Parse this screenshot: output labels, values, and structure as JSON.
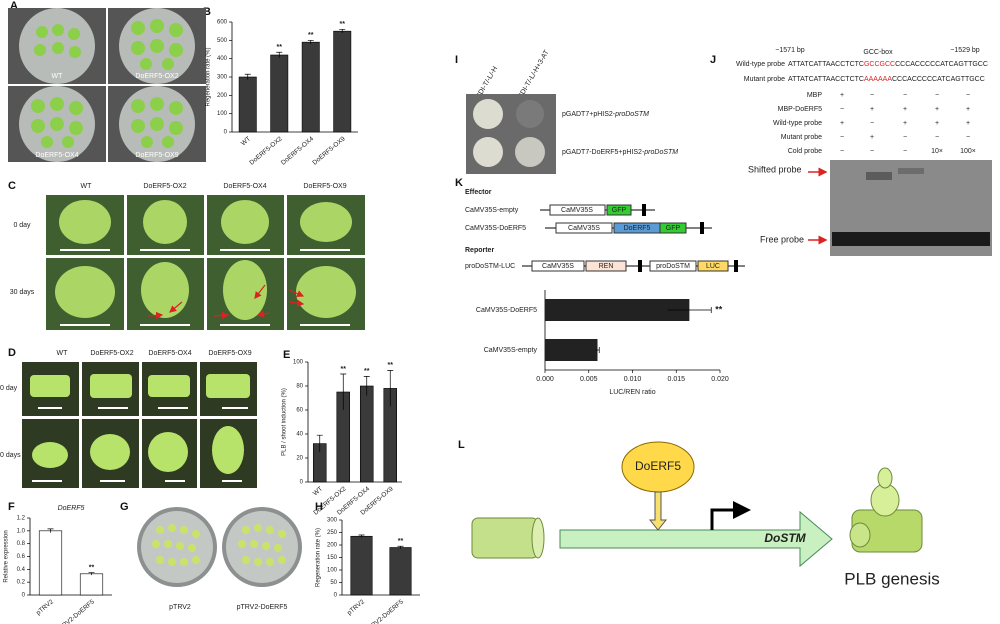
{
  "panel_letters": [
    "A",
    "B",
    "C",
    "D",
    "E",
    "F",
    "G",
    "H",
    "I",
    "J",
    "K",
    "L"
  ],
  "panel_a": {
    "labels": [
      "WT",
      "DoERF5-OX2",
      "DoERF5-OX4",
      "DoERF5-OX9"
    ]
  },
  "panel_c": {
    "columns": [
      "WT",
      "DoERF5-OX2",
      "DoERF5-OX4",
      "DoERF5-OX9"
    ],
    "rows": [
      "0 day",
      "30 days"
    ]
  },
  "panel_d": {
    "columns": [
      "WT",
      "DoERF5-OX2",
      "DoERF5-OX4",
      "DoERF5-OX9"
    ],
    "rows": [
      "0 day",
      "0 days"
    ]
  },
  "panel_g": {
    "labels": [
      "pTRV2",
      "pTRV2-DoERF5"
    ]
  },
  "panel_i": {
    "columns": [
      "SDI-T/-L/-H",
      "SDI-T/-L/-H+3-AT"
    ],
    "rows": [
      {
        "plain": "pGADT7+pHIS2-",
        "italic": "proDoSTM"
      },
      {
        "plain": "pGADT7-DoERF5+pHIS2-",
        "italic": "proDoSTM"
      }
    ]
  },
  "panel_j": {
    "left_coord": "−1571 bp",
    "box": "GCC-box",
    "right_coord": "−1529 bp",
    "wild_label": "Wild-type probe",
    "wild_seq": [
      "ATTATCATTAACCTCTC",
      "GCCGCC",
      "CCCACCCCCATCAGTTGCC"
    ],
    "mutant_label": "Mutant probe",
    "mutant_seq": [
      "ATTATCATTAACCTCTC",
      "AAAAAA",
      "CCCACCCCCATCAGTTGCC"
    ],
    "table": [
      {
        "label": "MBP",
        "cells": [
          "+",
          "−",
          "−",
          "−",
          "−"
        ]
      },
      {
        "label": "MBP-DoERF5",
        "cells": [
          "−",
          "+",
          "+",
          "+",
          "+"
        ]
      },
      {
        "label": "Wild-type probe",
        "cells": [
          "+",
          "−",
          "+",
          "+",
          "+"
        ]
      },
      {
        "label": "Mutant probe",
        "cells": [
          "−",
          "+",
          "−",
          "−",
          "−"
        ]
      },
      {
        "label": "Cold probe",
        "cells": [
          "−",
          "−",
          "−",
          "10×",
          "100×"
        ]
      }
    ],
    "shifted": "Shifted probe",
    "free": "Free probe"
  },
  "panel_k": {
    "effector": "Effector",
    "reporter": "Reporter",
    "constructs": [
      "CaMV35S-empty",
      "CaMV35S-DoERF5",
      "proDoSTM-LUC"
    ],
    "parts": {
      "promoter": "CaMV35S",
      "gfp": "GFP",
      "gene": "DoERF5",
      "ren": "REN",
      "pro": "proDoSTM",
      "luc": "LUC"
    }
  },
  "panel_l": {
    "factor": "DoERF5",
    "target": "DoSTM",
    "outcome": "PLB genesis"
  },
  "chart_data": [
    {
      "type": "bar",
      "ylabel": "Regeneration rate (%)",
      "categories": [
        "WT",
        "DoERF5-OX2",
        "DoERF5-OX4",
        "DoERF5-OX9"
      ],
      "values": [
        300,
        420,
        490,
        550
      ],
      "errors": [
        15,
        15,
        10,
        10
      ],
      "significance": [
        null,
        "**",
        "**",
        "**"
      ],
      "color": "#3a3a3a",
      "ylim": [
        0,
        600
      ],
      "yticks": [
        0,
        100,
        200,
        300,
        400,
        500,
        600
      ]
    },
    {
      "type": "bar",
      "ylabel": "PLB / shoot induction (%)",
      "categories": [
        "WT",
        "DoERF5-OX2",
        "DoERF5-OX4",
        "DoERF5-OX9"
      ],
      "values": [
        32,
        75,
        80,
        78
      ],
      "errors": [
        7,
        15,
        8,
        15
      ],
      "significance": [
        null,
        "**",
        "**",
        "**"
      ],
      "color": "#3a3a3a",
      "ylim": [
        0,
        100
      ],
      "yticks": [
        0,
        20,
        40,
        60,
        80,
        100
      ]
    },
    {
      "type": "bar",
      "title": "DoERF5",
      "ylabel": "Relative expression",
      "categories": [
        "pTRV2",
        "pTRV2-DoERF5"
      ],
      "values": [
        1.0,
        0.33
      ],
      "errors": [
        0.03,
        0.02
      ],
      "significance": [
        null,
        "**"
      ],
      "color": "#ffffff",
      "ylim": [
        0,
        1.2
      ],
      "yticks": [
        0,
        0.2,
        0.4,
        0.6,
        0.8,
        {
          "value": 1,
          "label": "1.0"
        },
        1.2
      ]
    },
    {
      "type": "bar",
      "ylabel": "Regeneration rate (%)",
      "categories": [
        "pTRV2",
        "pTRV2-DoERF5"
      ],
      "values": [
        235,
        190
      ],
      "errors": [
        5,
        5
      ],
      "significance": [
        null,
        "**"
      ],
      "color": "#3a3a3a",
      "ylim": [
        0,
        300
      ],
      "yticks": [
        0,
        50,
        100,
        150,
        200,
        250,
        300
      ]
    },
    {
      "type": "hbar",
      "xlabel": "LUC/REN ratio",
      "categories": [
        "CaMV35S-DoERF5",
        "CaMV35S-empty"
      ],
      "values": [
        0.0165,
        0.006
      ],
      "errors": [
        0.0025,
        0.0002
      ],
      "significance": [
        "**",
        null
      ],
      "color": "#222222",
      "xlim": [
        0,
        0.02
      ],
      "xticks": [
        {
          "value": 0,
          "label": "0.000"
        },
        {
          "value": 0.005,
          "label": "0.005"
        },
        {
          "value": 0.01,
          "label": "0.010"
        },
        {
          "value": 0.015,
          "label": "0.015"
        },
        {
          "value": 0.02,
          "label": "0.020"
        }
      ]
    }
  ]
}
